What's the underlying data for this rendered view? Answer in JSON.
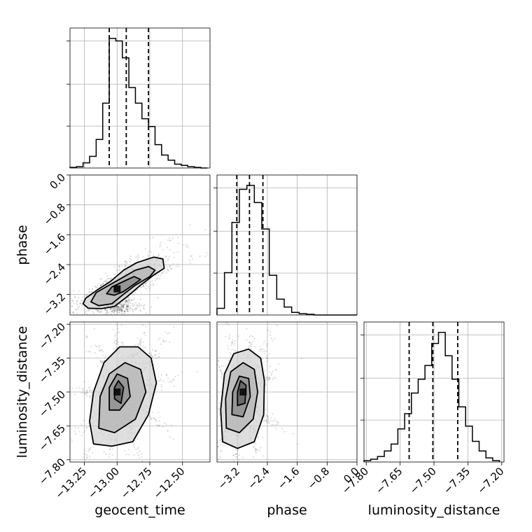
{
  "chart_data": {
    "type": "corner",
    "parameters": [
      "geocent_time",
      "phase",
      "luminosity_distance"
    ],
    "axes": {
      "geocent_time": {
        "label": "geocent_time",
        "range": [
          -13.36,
          -12.29
        ],
        "ticks": [
          -13.25,
          -13.0,
          -12.75,
          -12.5
        ],
        "tick_labels": [
          "−13.25",
          "−13.00",
          "−12.75",
          "−12.50"
        ]
      },
      "phase": {
        "label": "phase",
        "range": [
          -3.75,
          0.0
        ],
        "ticks": [
          -3.2,
          -2.4,
          -1.6,
          -0.8,
          0.0
        ],
        "tick_labels": [
          "−3.2",
          "−2.4",
          "−1.6",
          "−0.8",
          "0.0"
        ]
      },
      "luminosity_distance": {
        "label": "luminosity_distance",
        "range": [
          -7.81,
          -7.19
        ],
        "ticks": [
          -7.8,
          -7.65,
          -7.5,
          -7.35,
          -7.2
        ],
        "tick_labels": [
          "−7.80",
          "−7.65",
          "−7.50",
          "−7.35",
          "−7.20"
        ]
      }
    },
    "histograms": {
      "geocent_time": {
        "bin_edges": [
          -13.36,
          -13.31,
          -13.26,
          -13.21,
          -13.16,
          -13.11,
          -13.06,
          -13.01,
          -12.96,
          -12.91,
          -12.86,
          -12.81,
          -12.76,
          -12.71,
          -12.66,
          -12.61,
          -12.56,
          -12.51,
          -12.46,
          -12.41,
          -12.36,
          -12.31
        ],
        "counts": [
          0.5,
          1,
          4,
          9,
          22,
          50,
          100,
          98,
          85,
          62,
          50,
          38,
          32,
          18,
          10,
          6,
          3,
          2,
          1,
          0.5,
          0
        ],
        "quantiles": [
          -13.06,
          -12.93,
          -12.76
        ]
      },
      "phase": {
        "bin_edges": [
          -3.75,
          -3.55,
          -3.35,
          -3.15,
          -2.95,
          -2.75,
          -2.55,
          -2.35,
          -2.15,
          -1.95,
          -1.75,
          -1.55,
          -1.35,
          -1.15,
          -0.95,
          -0.75,
          -0.55,
          -0.35,
          -0.15,
          0.0
        ],
        "counts": [
          5,
          32,
          70,
          95,
          98,
          85,
          65,
          30,
          12,
          6,
          2,
          1,
          0.5,
          0,
          0,
          0,
          0,
          0,
          0
        ],
        "quantiles": [
          -3.22,
          -2.88,
          -2.52
        ]
      },
      "luminosity_distance": {
        "bin_edges": [
          -7.81,
          -7.78,
          -7.75,
          -7.72,
          -7.69,
          -7.66,
          -7.63,
          -7.6,
          -7.57,
          -7.54,
          -7.51,
          -7.48,
          -7.45,
          -7.42,
          -7.39,
          -7.36,
          -7.33,
          -7.3,
          -7.27,
          -7.24,
          -7.21
        ],
        "counts": [
          1,
          2,
          4,
          8,
          13,
          24,
          35,
          50,
          60,
          70,
          86,
          94,
          77,
          60,
          40,
          26,
          15,
          8,
          3,
          1
        ],
        "quantiles": [
          -7.61,
          -7.505,
          -7.395
        ]
      }
    },
    "joint": [
      {
        "x": "geocent_time",
        "y": "phase",
        "contours": [
          [
            [
              -13.26,
              -3.45
            ],
            [
              -13.22,
              -3.57
            ],
            [
              -13.12,
              -3.58
            ],
            [
              -13.02,
              -3.52
            ],
            [
              -12.92,
              -3.25
            ],
            [
              -12.82,
              -2.95
            ],
            [
              -12.72,
              -2.68
            ],
            [
              -12.64,
              -2.5
            ],
            [
              -12.65,
              -2.25
            ],
            [
              -12.72,
              -2.2
            ],
            [
              -12.85,
              -2.35
            ],
            [
              -12.95,
              -2.55
            ],
            [
              -13.05,
              -2.85
            ],
            [
              -13.16,
              -3.1
            ],
            [
              -13.24,
              -3.3
            ]
          ],
          [
            [
              -13.2,
              -3.4
            ],
            [
              -13.14,
              -3.5
            ],
            [
              -13.04,
              -3.45
            ],
            [
              -12.96,
              -3.22
            ],
            [
              -12.86,
              -2.95
            ],
            [
              -12.75,
              -2.72
            ],
            [
              -12.71,
              -2.55
            ],
            [
              -12.76,
              -2.45
            ],
            [
              -12.86,
              -2.55
            ],
            [
              -12.96,
              -2.75
            ],
            [
              -13.06,
              -2.95
            ],
            [
              -13.16,
              -3.15
            ]
          ],
          [
            [
              -13.08,
              -3.18
            ],
            [
              -13.02,
              -3.22
            ],
            [
              -12.95,
              -3.12
            ],
            [
              -12.88,
              -2.95
            ],
            [
              -12.82,
              -2.8
            ],
            [
              -12.87,
              -2.72
            ],
            [
              -12.95,
              -2.85
            ],
            [
              -13.04,
              -3.0
            ]
          ]
        ],
        "peak": [
          -13.0,
          -3.05
        ]
      },
      {
        "x": "geocent_time",
        "y": "luminosity_distance",
        "contours": [
          [
            [
              -13.18,
              -7.73
            ],
            [
              -13.04,
              -7.74
            ],
            [
              -12.88,
              -7.72
            ],
            [
              -12.76,
              -7.6
            ],
            [
              -12.7,
              -7.46
            ],
            [
              -12.74,
              -7.35
            ],
            [
              -12.84,
              -7.3
            ],
            [
              -12.98,
              -7.3
            ],
            [
              -13.1,
              -7.37
            ],
            [
              -13.18,
              -7.5
            ],
            [
              -13.21,
              -7.63
            ]
          ],
          [
            [
              -13.14,
              -7.66
            ],
            [
              -13.02,
              -7.68
            ],
            [
              -12.86,
              -7.62
            ],
            [
              -12.78,
              -7.5
            ],
            [
              -12.82,
              -7.4
            ],
            [
              -12.94,
              -7.37
            ],
            [
              -13.06,
              -7.42
            ],
            [
              -13.13,
              -7.52
            ]
          ],
          [
            [
              -13.06,
              -7.58
            ],
            [
              -12.98,
              -7.58
            ],
            [
              -12.9,
              -7.52
            ],
            [
              -12.92,
              -7.44
            ],
            [
              -13.0,
              -7.42
            ],
            [
              -13.06,
              -7.48
            ]
          ],
          [
            [
              -13.02,
              -7.53
            ],
            [
              -12.97,
              -7.55
            ],
            [
              -12.95,
              -7.48
            ],
            [
              -12.99,
              -7.45
            ],
            [
              -13.02,
              -7.48
            ]
          ]
        ],
        "peak": [
          -13.0,
          -7.5
        ]
      },
      {
        "x": "phase",
        "y": "luminosity_distance",
        "contours": [
          [
            [
              -3.6,
              -7.72
            ],
            [
              -3.2,
              -7.75
            ],
            [
              -2.75,
              -7.72
            ],
            [
              -2.5,
              -7.6
            ],
            [
              -2.48,
              -7.45
            ],
            [
              -2.58,
              -7.35
            ],
            [
              -2.9,
              -7.31
            ],
            [
              -3.3,
              -7.33
            ],
            [
              -3.55,
              -7.42
            ],
            [
              -3.65,
              -7.58
            ]
          ],
          [
            [
              -3.5,
              -7.66
            ],
            [
              -3.15,
              -7.68
            ],
            [
              -2.78,
              -7.62
            ],
            [
              -2.66,
              -7.5
            ],
            [
              -2.75,
              -7.4
            ],
            [
              -3.05,
              -7.37
            ],
            [
              -3.38,
              -7.41
            ],
            [
              -3.52,
              -7.53
            ]
          ],
          [
            [
              -3.35,
              -7.6
            ],
            [
              -3.05,
              -7.61
            ],
            [
              -2.86,
              -7.52
            ],
            [
              -2.9,
              -7.44
            ],
            [
              -3.15,
              -7.43
            ],
            [
              -3.33,
              -7.5
            ]
          ],
          [
            [
              -3.2,
              -7.56
            ],
            [
              -3.0,
              -7.55
            ],
            [
              -2.97,
              -7.47
            ],
            [
              -3.12,
              -7.45
            ],
            [
              -3.2,
              -7.5
            ]
          ]
        ],
        "peak": [
          -3.05,
          -7.5
        ]
      }
    ],
    "grid": true
  }
}
